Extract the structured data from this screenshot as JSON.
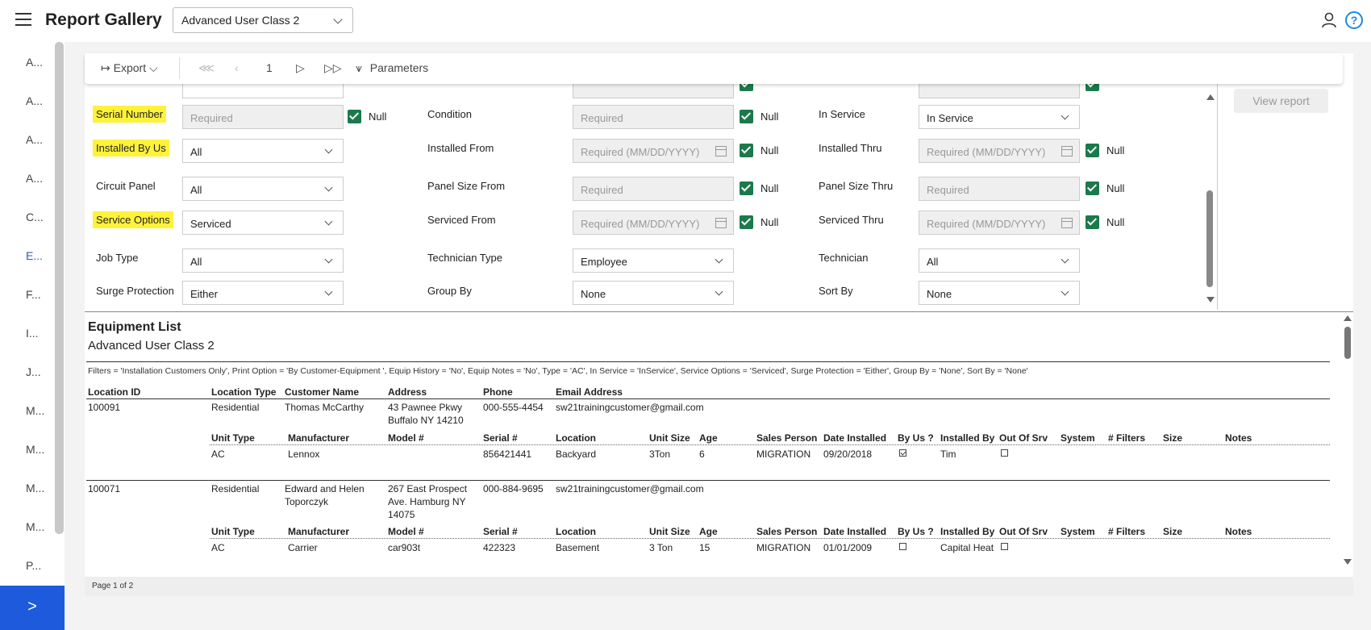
{
  "header": {
    "title": "Report Gallery",
    "report_select": "Advanced User Class 2"
  },
  "sidebar": {
    "items": [
      "A...",
      "A...",
      "A...",
      "A...",
      "C...",
      "E...",
      "F...",
      "I...",
      "J...",
      "M...",
      "M...",
      "M...",
      "M...",
      "P..."
    ],
    "expand_glyph": ">"
  },
  "toolbar": {
    "export_label": "Export",
    "page_number": "1",
    "parameters_label": "Parameters"
  },
  "params": {
    "serial_number": {
      "label": "Serial Number",
      "placeholder": "Required",
      "null_label": "Null"
    },
    "condition": {
      "label": "Condition",
      "placeholder": "Required",
      "null_label": "Null"
    },
    "in_service": {
      "label": "In Service",
      "value": "In Service"
    },
    "installed_by_us": {
      "label": "Installed By Us",
      "value": "All"
    },
    "installed_from": {
      "label": "Installed From",
      "placeholder": "Required (MM/DD/YYYY)",
      "null_label": "Null"
    },
    "installed_thru": {
      "label": "Installed Thru",
      "placeholder": "Required (MM/DD/YYYY)",
      "null_label": "Null"
    },
    "circuit_panel": {
      "label": "Circuit Panel",
      "value": "All"
    },
    "panel_size_from": {
      "label": "Panel Size From",
      "placeholder": "Required",
      "null_label": "Null"
    },
    "panel_size_thru": {
      "label": "Panel Size Thru",
      "placeholder": "Required",
      "null_label": "Null"
    },
    "service_options": {
      "label": "Service Options",
      "value": "Serviced"
    },
    "serviced_from": {
      "label": "Serviced From",
      "placeholder": "Required (MM/DD/YYYY)",
      "null_label": "Null"
    },
    "serviced_thru": {
      "label": "Serviced Thru",
      "placeholder": "Required (MM/DD/YYYY)",
      "null_label": "Null"
    },
    "job_type": {
      "label": "Job Type",
      "value": "All"
    },
    "technician_type": {
      "label": "Technician Type",
      "value": "Employee"
    },
    "technician": {
      "label": "Technician",
      "value": "All"
    },
    "surge_protection": {
      "label": "Surge Protection",
      "value": "Either"
    },
    "group_by": {
      "label": "Group By",
      "value": "None"
    },
    "sort_by": {
      "label": "Sort By",
      "value": "None"
    },
    "view_report_label": "View report"
  },
  "report": {
    "title": "Equipment List",
    "subtitle": "Advanced User Class 2",
    "filters": "Filters =  'Installation Customers Only', Print Option = 'By Customer-Equipment ', Equip History = 'No', Equip Notes = 'No', Type = 'AC', In Service = 'InService', Service Options = 'Serviced', Surge Protection = 'Either', Group By = 'None', Sort By = 'None'",
    "cust_headers": [
      "Location ID",
      "Location Type",
      "Customer Name",
      "Address",
      "Phone",
      "Email Address"
    ],
    "unit_headers": [
      "Unit Type",
      "Manufacturer",
      "Model #",
      "Serial #",
      "Location",
      "Unit Size",
      "Age",
      "Sales Person",
      "Date Installed",
      "By Us ?",
      "Installed By",
      "Out Of Srv",
      "System",
      "# Filters",
      "Size",
      "Notes"
    ],
    "customers": [
      {
        "location_id": "100091",
        "location_type": "Residential",
        "customer_name": "Thomas McCarthy",
        "address_lines": [
          "43 Pawnee Pkwy",
          "Buffalo NY 14210"
        ],
        "phone": "000-555-4454",
        "email": "sw21trainingcustomer@gmail.com",
        "unit": {
          "unit_type": "AC",
          "manufacturer": "Lennox",
          "model": "",
          "serial": "856421441",
          "location": "Backyard",
          "unit_size": "3Ton",
          "age": "6",
          "sales_person": "MIGRATION",
          "date_installed": "09/20/2018",
          "by_us": true,
          "installed_by": "Tim",
          "out_of_srv": false
        }
      },
      {
        "location_id": "100071",
        "location_type": "Residential",
        "customer_name_lines": [
          "Edward and Helen",
          "Toporczyk"
        ],
        "address_lines": [
          "267 East Prospect",
          "Ave. Hamburg NY",
          "14075"
        ],
        "phone": "000-884-9695",
        "email": "sw21trainingcustomer@gmail.com",
        "unit": {
          "unit_type": "AC",
          "manufacturer": "Carrier",
          "model": "car903t",
          "serial": "422323",
          "location": "Basement",
          "unit_size": "3 Ton",
          "age": "15",
          "sales_person": "MIGRATION",
          "date_installed": "01/01/2009",
          "by_us": false,
          "installed_by": "Capital Heat",
          "out_of_srv": false
        }
      }
    ],
    "footer": "Page 1 of 2"
  }
}
